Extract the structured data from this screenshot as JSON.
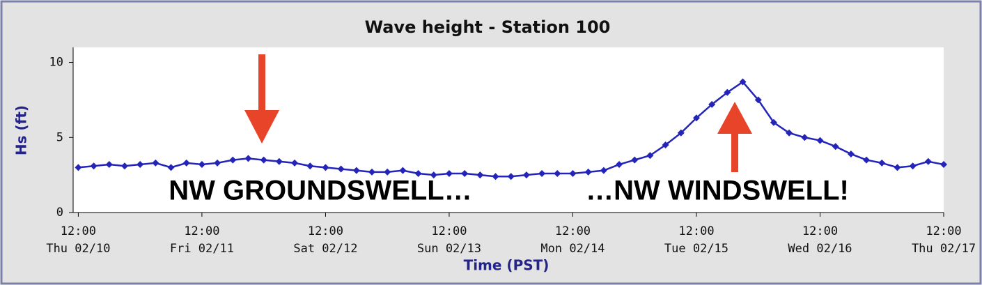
{
  "chart_data": {
    "type": "line",
    "title": "Wave height - Station 100",
    "x_label": "Time (PST)",
    "y_label": "Hs (ft)",
    "annotations": [
      "NW GROUNDSWELL…",
      "…NW WINDSWELL!"
    ],
    "x": [
      "02/10 12:00",
      "02/10 15:00",
      "02/10 18:00",
      "02/10 21:00",
      "02/11 00:00",
      "02/11 03:00",
      "02/11 06:00",
      "02/11 09:00",
      "02/11 12:00",
      "02/11 15:00",
      "02/11 18:00",
      "02/11 21:00",
      "02/12 00:00",
      "02/12 03:00",
      "02/12 06:00",
      "02/12 09:00",
      "02/12 12:00",
      "02/12 15:00",
      "02/12 18:00",
      "02/12 21:00",
      "02/13 00:00",
      "02/13 03:00",
      "02/13 06:00",
      "02/13 09:00",
      "02/13 12:00",
      "02/13 15:00",
      "02/13 18:00",
      "02/13 21:00",
      "02/14 00:00",
      "02/14 03:00",
      "02/14 06:00",
      "02/14 09:00",
      "02/14 12:00",
      "02/14 15:00",
      "02/14 18:00",
      "02/14 21:00",
      "02/15 00:00",
      "02/15 03:00",
      "02/15 06:00",
      "02/15 09:00",
      "02/15 12:00",
      "02/15 15:00",
      "02/15 18:00",
      "02/15 21:00",
      "02/16 00:00",
      "02/16 03:00",
      "02/16 06:00",
      "02/16 09:00",
      "02/16 12:00",
      "02/16 15:00",
      "02/16 18:00",
      "02/16 21:00",
      "02/17 00:00",
      "02/17 03:00",
      "02/17 06:00",
      "02/17 09:00",
      "02/17 12:00"
    ],
    "series": [
      {
        "name": "Hs",
        "color": "#2424b8",
        "values": [
          3.0,
          3.1,
          3.2,
          3.1,
          3.2,
          3.3,
          3.0,
          3.3,
          3.2,
          3.3,
          3.5,
          3.6,
          3.5,
          3.4,
          3.3,
          3.1,
          3.0,
          2.9,
          2.8,
          2.7,
          2.7,
          2.8,
          2.6,
          2.5,
          2.6,
          2.6,
          2.5,
          2.4,
          2.4,
          2.5,
          2.6,
          2.6,
          2.6,
          2.7,
          2.8,
          3.2,
          3.5,
          3.8,
          4.5,
          5.3,
          6.3,
          7.2,
          8.0,
          8.7,
          7.5,
          6.0,
          5.3,
          5.0,
          4.8,
          4.4,
          3.9,
          3.5,
          3.3,
          3.0,
          3.1,
          3.4,
          3.2
        ]
      }
    ],
    "xlim": [
      "02/10 11:00",
      "02/17 12:00"
    ],
    "ylim": [
      0,
      11
    ],
    "yticks": [
      0,
      5,
      10
    ],
    "xticks": [
      {
        "value": "02/10 12:00",
        "label": [
          "12:00",
          "Thu 02/10"
        ]
      },
      {
        "value": "02/11 12:00",
        "label": [
          "12:00",
          "Fri 02/11"
        ]
      },
      {
        "value": "02/12 12:00",
        "label": [
          "12:00",
          "Sat 02/12"
        ]
      },
      {
        "value": "02/13 12:00",
        "label": [
          "12:00",
          "Sun 02/13"
        ]
      },
      {
        "value": "02/14 12:00",
        "label": [
          "12:00",
          "Mon 02/14"
        ]
      },
      {
        "value": "02/15 12:00",
        "label": [
          "12:00",
          "Tue 02/15"
        ]
      },
      {
        "value": "02/16 12:00",
        "label": [
          "12:00",
          "Wed 02/16"
        ]
      },
      {
        "value": "02/17 12:00",
        "label": [
          "12:00",
          "Thu 02/17"
        ]
      }
    ],
    "grid": false
  }
}
